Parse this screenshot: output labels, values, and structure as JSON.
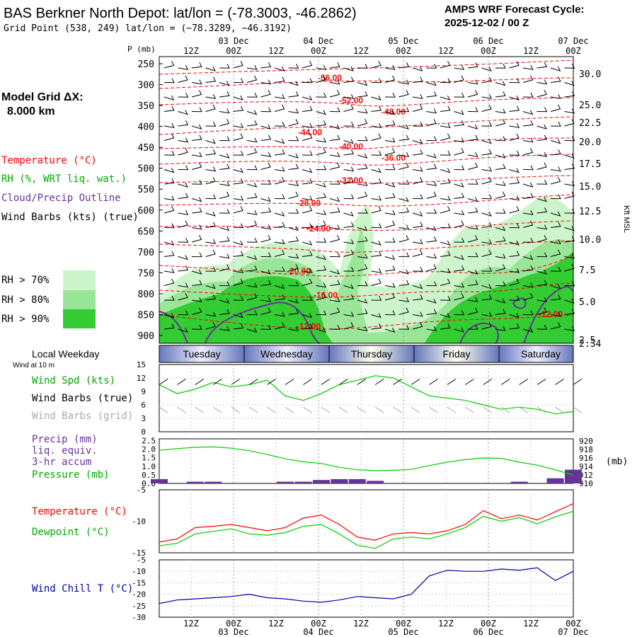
{
  "header": {
    "title": "BAS Berkner North Depot:  lat/lon = (-78.3003, -46.2862)",
    "grid_point": "Grid Point (538, 249) lat/lon = (−78.3289, −46.3192)",
    "cycle_line1": "AMPS WRF Forecast Cycle:",
    "cycle_line2": "2025-12-02 / 00  Z"
  },
  "model_grid": {
    "label": "Model Grid ΔX:",
    "value": "8.000 km"
  },
  "time_axis": {
    "hour_labels": [
      "12Z",
      "00Z",
      "12Z",
      "00Z",
      "12Z",
      "00Z",
      "12Z",
      "00Z",
      "12Z",
      "00Z"
    ],
    "date_labels": [
      "03 Dec",
      "04 Dec",
      "05 Dec",
      "06 Dec",
      "07 Dec"
    ],
    "hour_labels_bottom": [
      "12Z",
      "00Z",
      "12Z",
      "00Z",
      "12Z",
      "00Z",
      "12Z",
      "00Z",
      "12Z",
      "00Z"
    ]
  },
  "days": {
    "title": "Local Weekday",
    "names": [
      "Tuesday",
      "Wednesday",
      "Thursday",
      "Friday",
      "Saturday"
    ]
  },
  "colors": {
    "temperature": "#ff0000",
    "rh": "#00aa00",
    "cloud": "#663399",
    "wind_chill": "#0000aa",
    "rh70": "#ccf5cc",
    "rh80": "#99e699",
    "rh90": "#33cc33",
    "precip": "#663399"
  },
  "chart_data": [
    {
      "type": "heatmap",
      "name": "cross-section",
      "ylabel": "P (mb)",
      "ylabel_right": "Kft MSL",
      "pressure_ticks": [
        250,
        300,
        350,
        400,
        450,
        500,
        550,
        600,
        650,
        700,
        750,
        800,
        850,
        900
      ],
      "height_ticks": [
        "30.0",
        "25.0",
        "22.5",
        "20.0",
        "17.5",
        "15.0",
        "12.5",
        "10.0",
        "7.5",
        "5.0",
        "2.5",
        "2.34"
      ],
      "legend": [
        "Temperature (°C)",
        "RH (%, WRT liq. wat.)",
        "Cloud/Precip Outline",
        "Wind Barbs (kts) (true)"
      ],
      "rh_legend": [
        "RH > 70%",
        "RH > 80%",
        "RH > 90%"
      ],
      "temperature_labels": [
        "-56.00",
        "-52.00",
        "-48.00",
        "-44.00",
        "-40.00",
        "-36.00",
        "-32.00",
        "-28.00",
        "-24.00",
        "-20.00",
        "-16.00",
        "-12.00",
        "-12.00"
      ]
    },
    {
      "type": "line",
      "name": "wind-speed",
      "title": "Wind at 10 m",
      "legend": [
        "Wind Spd (kts)",
        "Wind Barbs (true)",
        "Wind Barbs (grid)"
      ],
      "ylim": [
        0,
        15
      ],
      "yticks": [
        "15",
        "12",
        "9",
        "6",
        "3",
        "0"
      ],
      "x_hours": [
        0,
        6,
        12,
        18,
        24,
        30,
        36,
        42,
        48,
        54,
        60,
        66,
        72,
        78,
        84,
        90,
        96,
        102,
        108,
        114,
        120,
        126,
        132,
        138
      ],
      "values": [
        10.5,
        8.5,
        9.5,
        11,
        10,
        10.5,
        11.5,
        8,
        7,
        8.5,
        10.5,
        11.5,
        12.5,
        12,
        10,
        8,
        7.5,
        7,
        6,
        5,
        5.5,
        5,
        4,
        4.5
      ]
    },
    {
      "type": "line",
      "name": "precip-pressure",
      "legend": [
        "Precip (mm)",
        "liq. equiv.",
        "3-hr accum",
        "Pressure (mb)"
      ],
      "ylim": [
        0,
        2.5
      ],
      "yticks_left": [
        "2.5",
        "2.0",
        "1.5",
        "1.0",
        "0.5",
        "0.0"
      ],
      "yticks_right": [
        "920",
        "918",
        "916",
        "914",
        "912",
        "910"
      ],
      "ylabel_right": "(mb)",
      "pressure": [
        917.8,
        918.2,
        918.5,
        918.6,
        918.3,
        917.7,
        916.8,
        915.8,
        915.1,
        914.7,
        913.8,
        913.2,
        913.0,
        913.1,
        913.3,
        914.2,
        915.0,
        915.6,
        916.0,
        915.9,
        915.0,
        914.3,
        913.2,
        912.0
      ],
      "precip": [
        0.25,
        0,
        0.1,
        0.1,
        0,
        0,
        0,
        0.1,
        0.1,
        0.2,
        0.25,
        0.25,
        0.15,
        0,
        0,
        0,
        0,
        0,
        0,
        0,
        0.1,
        0,
        0.3,
        0.8
      ]
    },
    {
      "type": "line",
      "name": "temperature-dewpoint",
      "legend": [
        "Temperature (°C)",
        "Dewpoint (°C)"
      ],
      "ylim": [
        -15,
        -5
      ],
      "yticks": [
        "-5",
        "-10",
        "-15"
      ],
      "temperature": [
        -13.3,
        -12.8,
        -11,
        -10.8,
        -10.5,
        -11,
        -11.5,
        -11,
        -9.5,
        -9,
        -10.5,
        -12.5,
        -13,
        -12,
        -11.8,
        -12,
        -11.5,
        -10.5,
        -8.3,
        -9.6,
        -9.0,
        -9.8,
        -8.5,
        -7.2
      ],
      "dewpoint": [
        -13.9,
        -13.5,
        -12,
        -11.6,
        -11.2,
        -12,
        -12.2,
        -11.8,
        -10.8,
        -10.5,
        -12,
        -13.8,
        -14.3,
        -12.8,
        -12.5,
        -12.8,
        -12.0,
        -11.0,
        -9.2,
        -10.0,
        -9.4,
        -10.4,
        -9.3,
        -8.4
      ]
    },
    {
      "type": "line",
      "name": "wind-chill",
      "legend": [
        "Wind Chill T (°C)"
      ],
      "ylim": [
        -30,
        -5
      ],
      "yticks": [
        "-5",
        "-10",
        "-15",
        "-20",
        "-25",
        "-30"
      ],
      "values": [
        -24,
        -22.5,
        -22,
        -21.5,
        -21,
        -20,
        -21.5,
        -22,
        -23,
        -23.5,
        -22.5,
        -21,
        -21.5,
        -22,
        -20,
        -12,
        -9.5,
        -10,
        -10,
        -9,
        -9.5,
        -8.5,
        -14,
        -10
      ]
    }
  ]
}
